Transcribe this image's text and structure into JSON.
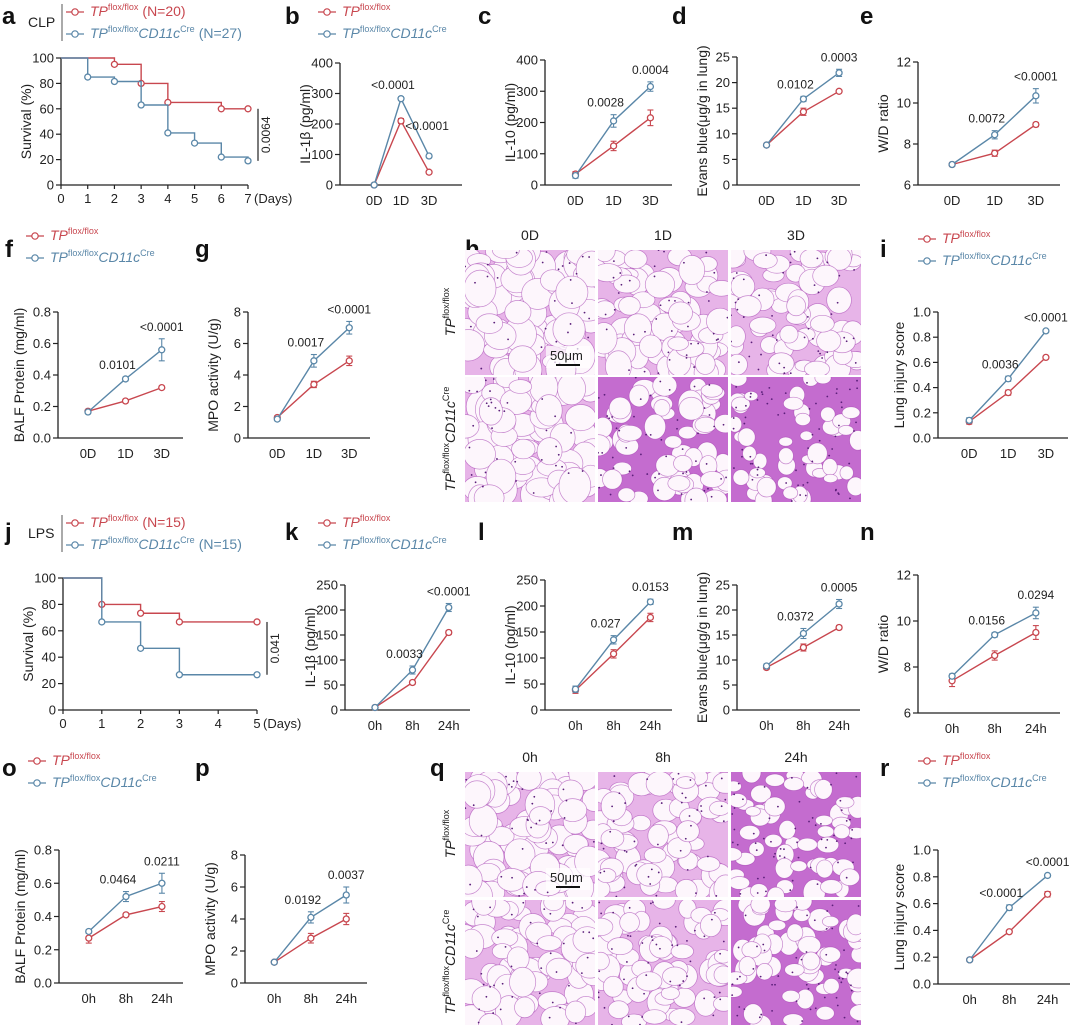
{
  "colors": {
    "control": "#c8474f",
    "knockout": "#5a87a8",
    "stain_bg": "#f3d6ef",
    "stain_dark": "#a43fb0"
  },
  "chart_data": [
    {
      "panel": "a",
      "type": "line",
      "step": true,
      "group_label": "CLP",
      "legend": [
        {
          "gene": "TP",
          "sup": "flox/flox",
          "n": "(N=20)"
        },
        {
          "gene": "TP",
          "sup": "flox/flox",
          "gene2": "CD11c",
          "sup2": "Cre",
          "n": "(N=27)"
        }
      ],
      "ylabel": "Survival (%)",
      "xlabel": "(Days)",
      "ylim": [
        0,
        100
      ],
      "yticks": [
        "0",
        "20",
        "40",
        "60",
        "80",
        "100"
      ],
      "xlim": [
        0,
        7
      ],
      "xticks": [
        "0",
        "1",
        "2",
        "3",
        "4",
        "5",
        "6",
        "7"
      ],
      "series": [
        {
          "x": [
            0,
            2,
            3,
            4,
            6,
            7
          ],
          "y": [
            100,
            95,
            80,
            65,
            60,
            60
          ]
        },
        {
          "x": [
            0,
            1,
            2,
            3,
            4,
            5,
            6,
            7
          ],
          "y": [
            100,
            85,
            81.5,
            63,
            41,
            33,
            22,
            19
          ]
        }
      ],
      "pvalue": "0.0064"
    },
    {
      "panel": "b",
      "type": "line",
      "legend": [
        {
          "gene": "TP",
          "sup": "flox/flox"
        },
        {
          "gene": "TP",
          "sup": "flox/flox",
          "gene2": "CD11c",
          "sup2": "Cre"
        }
      ],
      "ylabel": "IL-1β (pg/ml)",
      "ylim": [
        0,
        400
      ],
      "yticks": [
        "0",
        "100",
        "200",
        "300",
        "400"
      ],
      "categories": [
        "0D",
        "1D",
        "3D"
      ],
      "series": [
        {
          "values": [
            0,
            210,
            42
          ],
          "errors": [
            2,
            8,
            5
          ]
        },
        {
          "values": [
            0,
            283,
            95
          ],
          "errors": [
            2,
            6,
            6
          ]
        }
      ],
      "annotations": [
        {
          "at": 1,
          "text": "<0.0001"
        },
        {
          "at": 2,
          "text": "<0.0001"
        }
      ]
    },
    {
      "panel": "c",
      "type": "line",
      "ylabel": "IL-10 (pg/ml)",
      "ylim": [
        0,
        400
      ],
      "yticks": [
        "0",
        "100",
        "200",
        "300",
        "400"
      ],
      "categories": [
        "0D",
        "1D",
        "3D"
      ],
      "series": [
        {
          "values": [
            35,
            125,
            215
          ],
          "errors": [
            8,
            15,
            25
          ]
        },
        {
          "values": [
            30,
            205,
            315
          ],
          "errors": [
            8,
            20,
            15
          ]
        }
      ],
      "annotations": [
        {
          "at": 1,
          "text": "0.0028"
        },
        {
          "at": 2,
          "text": "0.0004"
        }
      ]
    },
    {
      "panel": "d",
      "type": "line",
      "ylabel": "Evans blue(μg/g in lung)",
      "ylim": [
        0,
        25
      ],
      "yticks": [
        "0",
        "5",
        "10",
        "15",
        "20",
        "25"
      ],
      "categories": [
        "0D",
        "1D",
        "3D"
      ],
      "series": [
        {
          "values": [
            7.8,
            14.3,
            18.3
          ],
          "errors": [
            0.2,
            0.7,
            0.3
          ]
        },
        {
          "values": [
            7.8,
            16.8,
            21.9
          ],
          "errors": [
            0.2,
            0.5,
            0.7
          ]
        }
      ],
      "annotations": [
        {
          "at": 1,
          "text": "0.0102"
        },
        {
          "at": 2,
          "text": "0.0003"
        }
      ]
    },
    {
      "panel": "e",
      "type": "line",
      "ylabel": "W/D ratio",
      "ylim": [
        6,
        12
      ],
      "yticks": [
        "6",
        "8",
        "10",
        "12"
      ],
      "categories": [
        "0D",
        "1D",
        "3D"
      ],
      "series": [
        {
          "values": [
            7.0,
            7.55,
            8.95
          ],
          "errors": [
            0.08,
            0.15,
            0.1
          ]
        },
        {
          "values": [
            7.0,
            8.45,
            10.35
          ],
          "errors": [
            0.08,
            0.2,
            0.35
          ]
        }
      ],
      "annotations": [
        {
          "at": 1,
          "text": "0.0072"
        },
        {
          "at": 2,
          "text": "<0.0001"
        }
      ]
    },
    {
      "panel": "f",
      "type": "line",
      "legend": [
        {
          "gene": "TP",
          "sup": "flox/flox"
        },
        {
          "gene": "TP",
          "sup": "flox/flox",
          "gene2": "CD11c",
          "sup2": "Cre"
        }
      ],
      "ylabel": "BALF Protein (mg/ml)",
      "ylim": [
        0,
        0.8
      ],
      "yticks": [
        "0.0",
        "0.2",
        "0.4",
        "0.6",
        "0.8"
      ],
      "categories": [
        "0D",
        "1D",
        "3D"
      ],
      "series": [
        {
          "values": [
            0.17,
            0.235,
            0.32
          ],
          "errors": [
            0.01,
            0.008,
            0.008
          ]
        },
        {
          "values": [
            0.165,
            0.375,
            0.56
          ],
          "errors": [
            0.01,
            0.012,
            0.07
          ]
        }
      ],
      "annotations": [
        {
          "at": 1,
          "text": "0.0101"
        },
        {
          "at": 2,
          "text": "<0.0001"
        }
      ]
    },
    {
      "panel": "g",
      "type": "line",
      "ylabel": "MPO activity (U/g)",
      "ylim": [
        0,
        8
      ],
      "yticks": [
        "0",
        "2",
        "4",
        "6",
        "8"
      ],
      "categories": [
        "0D",
        "1D",
        "3D"
      ],
      "series": [
        {
          "values": [
            1.3,
            3.4,
            4.9
          ],
          "errors": [
            0.1,
            0.2,
            0.3
          ]
        },
        {
          "values": [
            1.2,
            4.9,
            7.0
          ],
          "errors": [
            0.1,
            0.4,
            0.4
          ]
        }
      ],
      "annotations": [
        {
          "at": 1,
          "text": "0.0017"
        },
        {
          "at": 2,
          "text": "<0.0001"
        }
      ]
    },
    {
      "panel": "i",
      "type": "line",
      "legend": [
        {
          "gene": "TP",
          "sup": "flox/flox"
        },
        {
          "gene": "TP",
          "sup": "flox/flox",
          "gene2": "CD11c",
          "sup2": "Cre"
        }
      ],
      "ylabel": "Lung injury score",
      "ylim": [
        0,
        1.0
      ],
      "yticks": [
        "0.0",
        "0.2",
        "0.4",
        "0.6",
        "0.8",
        "1.0"
      ],
      "categories": [
        "0D",
        "1D",
        "3D"
      ],
      "series": [
        {
          "values": [
            0.13,
            0.36,
            0.64
          ],
          "errors": [
            0.02,
            0.02,
            0.01
          ]
        },
        {
          "values": [
            0.14,
            0.47,
            0.85
          ],
          "errors": [
            0.02,
            0.02,
            0.01
          ]
        }
      ],
      "annotations": [
        {
          "at": 1,
          "text": "0.0036"
        },
        {
          "at": 2,
          "text": "<0.0001"
        }
      ]
    },
    {
      "panel": "j",
      "type": "line",
      "step": true,
      "group_label": "LPS",
      "legend": [
        {
          "gene": "TP",
          "sup": "flox/flox",
          "n": "(N=15)"
        },
        {
          "gene": "TP",
          "sup": "flox/flox",
          "gene2": "CD11c",
          "sup2": "Cre",
          "n": "(N=15)"
        }
      ],
      "ylabel": "Survival (%)",
      "xlabel": "(Days)",
      "ylim": [
        0,
        100
      ],
      "yticks": [
        "0",
        "20",
        "40",
        "60",
        "80",
        "100"
      ],
      "xlim": [
        0,
        5
      ],
      "xticks": [
        "0",
        "1",
        "2",
        "3",
        "4",
        "5"
      ],
      "series": [
        {
          "x": [
            0,
            1,
            2,
            3,
            5
          ],
          "y": [
            100,
            80,
            73.3,
            66.7,
            66.7
          ]
        },
        {
          "x": [
            0,
            1,
            2,
            3,
            5
          ],
          "y": [
            100,
            66.7,
            46.7,
            26.7,
            26.7
          ]
        }
      ],
      "pvalue": "0.041"
    },
    {
      "panel": "k",
      "type": "line",
      "legend": [
        {
          "gene": "TP",
          "sup": "flox/flox"
        },
        {
          "gene": "TP",
          "sup": "flox/flox",
          "gene2": "CD11c",
          "sup2": "Cre"
        }
      ],
      "ylabel": "IL-1β (pg/ml)",
      "ylim": [
        0,
        250
      ],
      "yticks": [
        "0",
        "50",
        "100",
        "150",
        "200",
        "250"
      ],
      "categories": [
        "0h",
        "8h",
        "24h"
      ],
      "series": [
        {
          "values": [
            5,
            55,
            155
          ],
          "errors": [
            2,
            4,
            4
          ]
        },
        {
          "values": [
            5,
            80,
            205
          ],
          "errors": [
            2,
            8,
            8
          ]
        }
      ],
      "annotations": [
        {
          "at": 1,
          "text": "0.0033"
        },
        {
          "at": 2,
          "text": "<0.0001"
        }
      ]
    },
    {
      "panel": "l",
      "type": "line",
      "ylabel": "IL-10 (pg/ml)",
      "ylim": [
        0,
        250
      ],
      "yticks": [
        "0",
        "50",
        "100",
        "150",
        "200",
        "250"
      ],
      "categories": [
        "0h",
        "8h",
        "24h"
      ],
      "series": [
        {
          "values": [
            38,
            108,
            178
          ],
          "errors": [
            6,
            8,
            8
          ]
        },
        {
          "values": [
            40,
            135,
            208
          ],
          "errors": [
            6,
            8,
            5
          ]
        }
      ],
      "annotations": [
        {
          "at": 1,
          "text": "0.027"
        },
        {
          "at": 2,
          "text": "0.0153"
        }
      ]
    },
    {
      "panel": "m",
      "type": "line",
      "ylabel": "Evans blue(μg/g in lung)",
      "ylim": [
        0,
        25
      ],
      "yticks": [
        "0",
        "5",
        "10",
        "15",
        "20",
        "25"
      ],
      "categories": [
        "0h",
        "8h",
        "24h"
      ],
      "series": [
        {
          "values": [
            8.5,
            12.5,
            16.5
          ],
          "errors": [
            0.4,
            0.7,
            0.4
          ]
        },
        {
          "values": [
            8.8,
            15.3,
            21.2
          ],
          "errors": [
            0.4,
            1.0,
            0.9
          ]
        }
      ],
      "annotations": [
        {
          "at": 1,
          "text": "0.0372"
        },
        {
          "at": 2,
          "text": "0.0005"
        }
      ]
    },
    {
      "panel": "n",
      "type": "line",
      "ylabel": "W/D ratio",
      "ylim": [
        6,
        12
      ],
      "yticks": [
        "6",
        "8",
        "10",
        "12"
      ],
      "categories": [
        "0h",
        "8h",
        "24h"
      ],
      "series": [
        {
          "values": [
            7.4,
            8.5,
            9.5
          ],
          "errors": [
            0.25,
            0.2,
            0.3
          ]
        },
        {
          "values": [
            7.6,
            9.4,
            10.35
          ],
          "errors": [
            0.1,
            0.1,
            0.25
          ]
        }
      ],
      "annotations": [
        {
          "at": 1,
          "text": "0.0156"
        },
        {
          "at": 2,
          "text": "0.0294"
        }
      ]
    },
    {
      "panel": "o",
      "type": "line",
      "legend": [
        {
          "gene": "TP",
          "sup": "flox/flox"
        },
        {
          "gene": "TP",
          "sup": "flox/flox",
          "gene2": "CD11c",
          "sup2": "Cre"
        }
      ],
      "ylabel": "BALF Protein (mg/ml)",
      "ylim": [
        0,
        0.8
      ],
      "yticks": [
        "0.0",
        "0.2",
        "0.4",
        "0.6",
        "0.8"
      ],
      "categories": [
        "0h",
        "8h",
        "24h"
      ],
      "series": [
        {
          "values": [
            0.27,
            0.41,
            0.46
          ],
          "errors": [
            0.03,
            0.01,
            0.03
          ]
        },
        {
          "values": [
            0.31,
            0.52,
            0.6
          ],
          "errors": [
            0.01,
            0.03,
            0.06
          ]
        }
      ],
      "annotations": [
        {
          "at": 1,
          "text": "0.0464"
        },
        {
          "at": 2,
          "text": "0.0211"
        }
      ]
    },
    {
      "panel": "p",
      "type": "line",
      "ylabel": "MPO activity (U/g)",
      "ylim": [
        0,
        8
      ],
      "yticks": [
        "0",
        "2",
        "4",
        "6",
        "8"
      ],
      "categories": [
        "0h",
        "8h",
        "24h"
      ],
      "series": [
        {
          "values": [
            1.3,
            2.8,
            4.0
          ],
          "errors": [
            0.1,
            0.3,
            0.35
          ]
        },
        {
          "values": [
            1.3,
            4.1,
            5.5
          ],
          "errors": [
            0.1,
            0.35,
            0.5
          ]
        }
      ],
      "annotations": [
        {
          "at": 1,
          "text": "0.0192"
        },
        {
          "at": 2,
          "text": "0.0037"
        }
      ]
    },
    {
      "panel": "r",
      "type": "line",
      "legend": [
        {
          "gene": "TP",
          "sup": "flox/flox"
        },
        {
          "gene": "TP",
          "sup": "flox/flox",
          "gene2": "CD11c",
          "sup2": "Cre"
        }
      ],
      "ylabel": "Lung injury score",
      "ylim": [
        0,
        1.0
      ],
      "yticks": [
        "0.0",
        "0.2",
        "0.4",
        "0.6",
        "0.8",
        "1.0"
      ],
      "categories": [
        "0h",
        "8h",
        "24h"
      ],
      "series": [
        {
          "values": [
            0.18,
            0.39,
            0.67
          ],
          "errors": [
            0.01,
            0.01,
            0.02
          ]
        },
        {
          "values": [
            0.18,
            0.57,
            0.81
          ],
          "errors": [
            0.01,
            0.02,
            0.01
          ]
        }
      ],
      "annotations": [
        {
          "at": 1,
          "text": "<0.0001"
        },
        {
          "at": 2,
          "text": "<0.0001"
        }
      ]
    }
  ],
  "histology": [
    {
      "panel": "h",
      "columns": [
        "0D",
        "1D",
        "3D"
      ],
      "rows": [
        {
          "gene": "TP",
          "sup": "flox/flox"
        },
        {
          "gene": "TP",
          "sup": "flox/flox",
          "gene2": "CD11c",
          "sup2": "Cre"
        }
      ],
      "scale_bar": "50μm"
    },
    {
      "panel": "q",
      "columns": [
        "0h",
        "8h",
        "24h"
      ],
      "rows": [
        {
          "gene": "TP",
          "sup": "flox/flox"
        },
        {
          "gene": "TP",
          "sup": "flox/flox",
          "gene2": "CD11c",
          "sup2": "Cre"
        }
      ],
      "scale_bar": "50μm"
    }
  ]
}
